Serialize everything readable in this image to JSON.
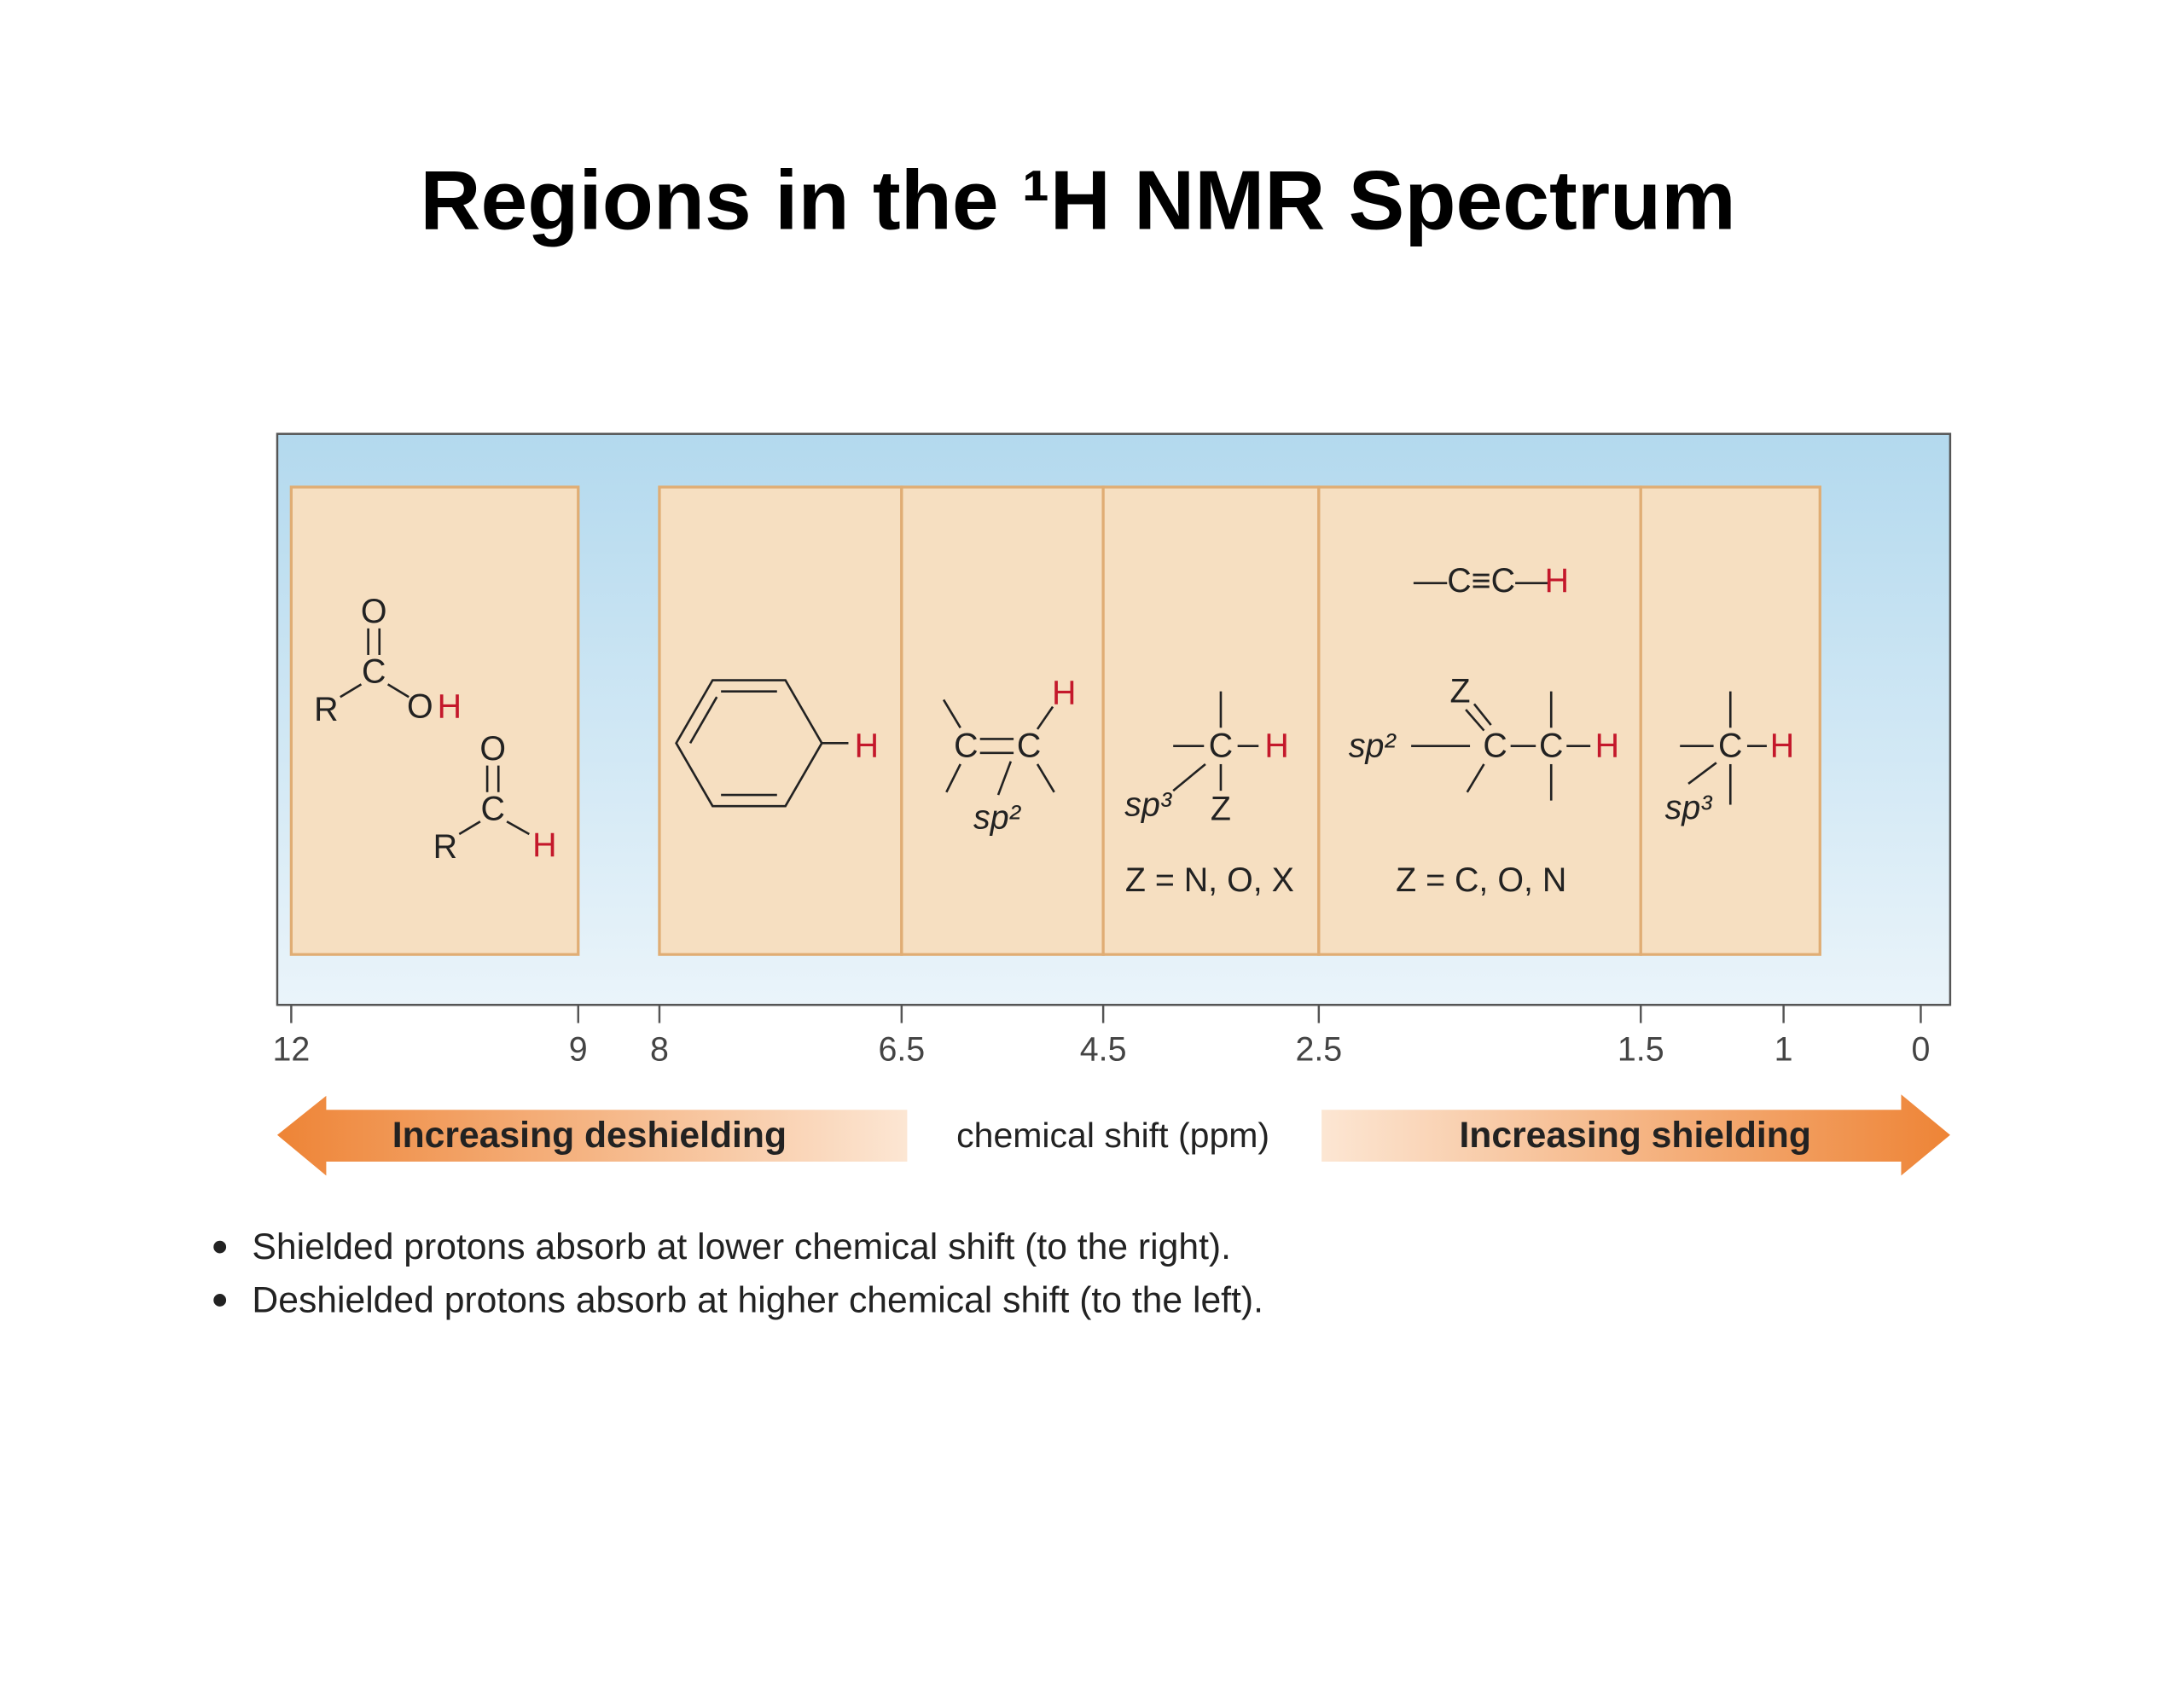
{
  "title": "Regions in the ¹H NMR Spectrum",
  "regions": [
    {
      "atoms": [
        "O",
        "C",
        "R",
        "O",
        "H",
        "O",
        "C",
        "R",
        "H"
      ]
    },
    {
      "atoms": [
        "H"
      ]
    },
    {
      "atoms": [
        "C",
        "C",
        "H",
        "sp²"
      ]
    },
    {
      "atoms": [
        "C",
        "H",
        "Z",
        "sp³",
        "Z = N, O, X"
      ]
    },
    {
      "atoms": [
        "—C≡C—",
        "H",
        "Z",
        "sp²",
        "C",
        "C",
        "H",
        "Z = C, O, N"
      ]
    },
    {
      "atoms": [
        "C",
        "H",
        "sp³"
      ]
    }
  ],
  "axis": {
    "ticks": [
      12,
      9,
      8,
      6.5,
      4.5,
      2.5,
      1.5,
      1,
      0
    ],
    "label": "chemical shift (ppm)"
  },
  "arrows": {
    "left": "Increasing deshielding",
    "right": "Increasing shielding"
  },
  "bullets": [
    "Shielded protons absorb at lower chemical shift (to the right).",
    "Deshielded protons absorb at higher chemical shift (to the left)."
  ]
}
